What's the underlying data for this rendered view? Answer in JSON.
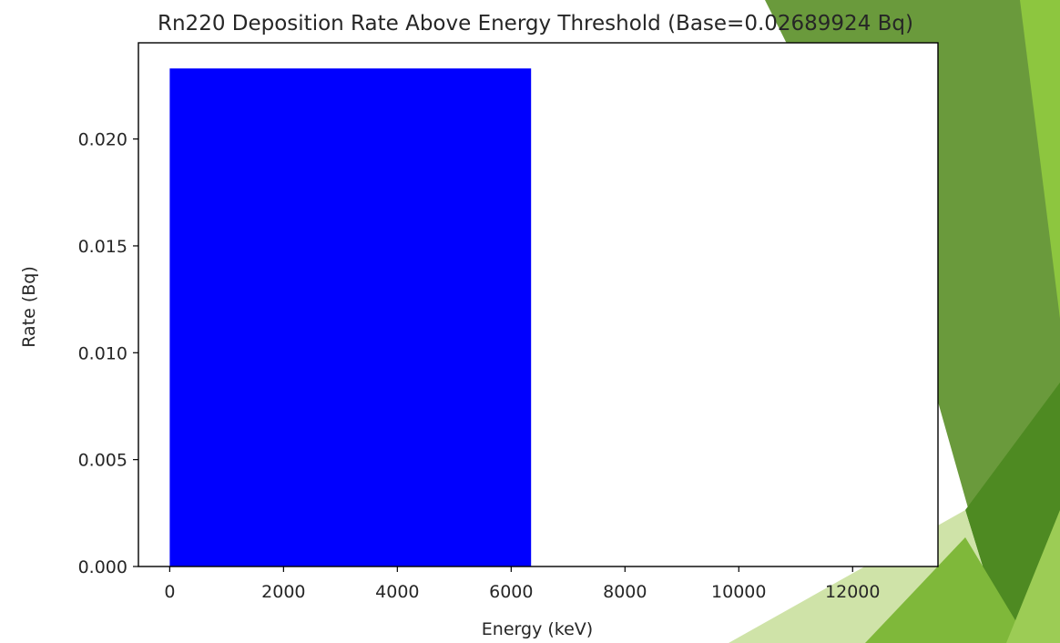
{
  "chart_data": {
    "type": "bar",
    "title": "Rn220 Deposition Rate Above Energy Threshold (Base=0.02689924 Bq)",
    "xlabel": "Energy (keV)",
    "ylabel": "Rate (Bq)",
    "x_ticks": [
      0,
      2000,
      4000,
      6000,
      8000,
      10000,
      12000
    ],
    "x_tick_labels": [
      "0",
      "2000",
      "4000",
      "6000",
      "8000",
      "10000",
      "12000"
    ],
    "y_ticks": [
      0,
      0.005,
      0.01,
      0.015,
      0.02
    ],
    "y_tick_labels": [
      "0.000",
      "0.005",
      "0.010",
      "0.015",
      "0.020"
    ],
    "xlim": [
      -550,
      13500
    ],
    "ylim": [
      0,
      0.0245
    ],
    "grid": false,
    "bars": [
      {
        "x_start": 0,
        "x_end": 6350,
        "value": 0.0233,
        "color": "#0000ff"
      }
    ]
  }
}
